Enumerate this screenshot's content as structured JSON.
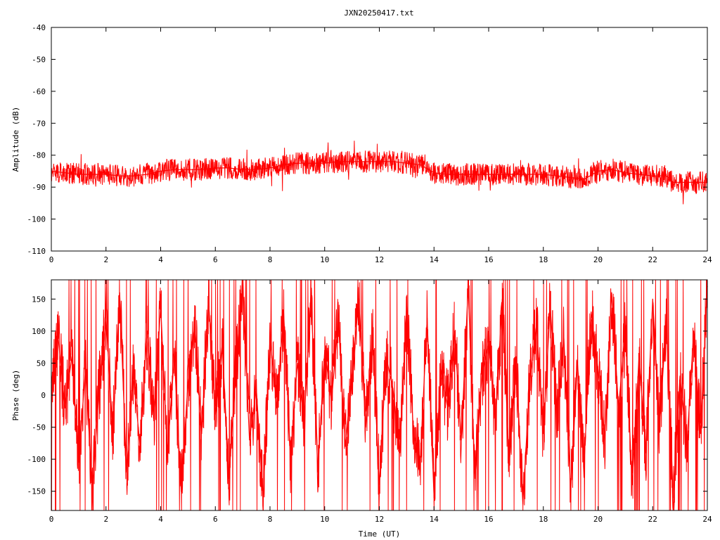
{
  "title": "JXN20250417.txt",
  "colors": {
    "series": "#ff0000",
    "axes": "#000000",
    "background": "#ffffff"
  },
  "chart_data": [
    {
      "type": "line",
      "title": "JXN20250417.txt",
      "xlabel": "",
      "ylabel": "Amplitude (dB)",
      "xlim": [
        0,
        24
      ],
      "ylim": [
        -110,
        -40
      ],
      "grid": false,
      "x_ticks": [
        0,
        2,
        4,
        6,
        8,
        10,
        12,
        14,
        16,
        18,
        20,
        22,
        24
      ],
      "y_ticks": [
        -40,
        -50,
        -60,
        -70,
        -80,
        -90,
        -100,
        -110
      ],
      "x_tick_labels": [
        "0",
        "2",
        "4",
        "6",
        "8",
        "10",
        "12",
        "14",
        "16",
        "18",
        "20",
        "22",
        "24"
      ],
      "y_tick_labels": [
        "-40",
        "-50",
        "-60",
        "-70",
        "-80",
        "-90",
        "-100",
        "-110"
      ],
      "series": [
        {
          "x": [
            0,
            0.5,
            1,
            1.5,
            2,
            2.5,
            3,
            3.5,
            4,
            4.5,
            5,
            5.5,
            6,
            6.5,
            7,
            7.5,
            8,
            8.5,
            9,
            9.5,
            10,
            10.5,
            11,
            11.5,
            12,
            12.5,
            13,
            13.5,
            14,
            14.5,
            15,
            15.5,
            16,
            16.5,
            17,
            17.5,
            18,
            18.5,
            19,
            19.5,
            20,
            20.5,
            21,
            21.5,
            22,
            22.5,
            22.75,
            23,
            23.5,
            24
          ],
          "y": [
            -85,
            -85.5,
            -86,
            -86,
            -86,
            -86.5,
            -86.5,
            -86,
            -85,
            -84.5,
            -84.5,
            -84.5,
            -84,
            -84,
            -84.5,
            -84.5,
            -84,
            -83,
            -82.5,
            -82.5,
            -82.5,
            -82,
            -82,
            -82,
            -82,
            -82,
            -82.5,
            -83,
            -85.5,
            -86,
            -86,
            -86,
            -86,
            -86,
            -86,
            -86,
            -86,
            -86.5,
            -87,
            -87.5,
            -85,
            -84.5,
            -85.5,
            -86,
            -86.5,
            -86.5,
            -88.5,
            -88.5,
            -88.5,
            -88.5
          ]
        }
      ]
    },
    {
      "type": "line",
      "title": "",
      "xlabel": "Time (UT)",
      "ylabel": "Phase (deg)",
      "xlim": [
        0,
        24
      ],
      "ylim": [
        -180,
        180
      ],
      "grid": false,
      "x_ticks": [
        0,
        2,
        4,
        6,
        8,
        10,
        12,
        14,
        16,
        18,
        20,
        22,
        24
      ],
      "y_ticks": [
        150,
        100,
        50,
        0,
        -50,
        -100,
        -150
      ],
      "x_tick_labels": [
        "0",
        "2",
        "4",
        "6",
        "8",
        "10",
        "12",
        "14",
        "16",
        "18",
        "20",
        "22",
        "24"
      ],
      "y_tick_labels": [
        "150",
        "100",
        "50",
        "0",
        "-50",
        "-100",
        "-150"
      ],
      "series": [
        {
          "x": [
            0,
            0.25,
            0.5,
            0.75,
            1,
            1.25,
            1.5,
            1.75,
            2,
            2.25,
            2.5,
            2.75,
            3,
            3.25,
            3.5,
            3.75,
            4,
            4.25,
            4.5,
            4.75,
            5,
            5.25,
            5.5,
            5.75,
            6,
            6.25,
            6.5,
            6.75,
            7,
            7.25,
            7.5,
            7.75,
            8,
            8.25,
            8.5,
            8.75,
            9,
            9.25,
            9.5,
            9.75,
            10,
            10.25,
            10.5,
            10.75,
            11,
            11.25,
            11.5,
            11.75,
            12,
            12.25,
            12.5,
            12.75,
            13,
            13.25,
            13.5,
            13.75,
            14,
            14.25,
            14.5,
            14.75,
            15,
            15.25,
            15.5,
            15.75,
            16,
            16.25,
            16.5,
            16.75,
            17,
            17.25,
            17.5,
            17.75,
            18,
            18.25,
            18.5,
            18.75,
            19,
            19.25,
            19.5,
            19.75,
            20,
            20.25,
            20.5,
            20.75,
            21,
            21.25,
            21.5,
            21.75,
            22,
            22.25,
            22.5,
            22.75,
            23,
            23.25,
            23.5,
            23.75,
            24
          ],
          "y": [
            20,
            90,
            -20,
            60,
            -100,
            40,
            -150,
            10,
            120,
            -60,
            160,
            -120,
            30,
            -80,
            100,
            -40,
            140,
            -90,
            60,
            -150,
            20,
            110,
            -60,
            150,
            -30,
            80,
            -130,
            40,
            170,
            -70,
            10,
            -160,
            90,
            -20,
            130,
            -100,
            50,
            -40,
            160,
            -120,
            70,
            -10,
            120,
            -80,
            30,
            150,
            -50,
            90,
            -140,
            60,
            10,
            -90,
            140,
            -60,
            -100,
            120,
            -160,
            40,
            -20,
            100,
            -70,
            170,
            -130,
            30,
            80,
            -40,
            150,
            -110,
            60,
            -170,
            20,
            110,
            -60,
            140,
            -30,
            90,
            -150,
            50,
            -100,
            130,
            40,
            -70,
            160,
            -20,
            100,
            -140,
            60,
            -90,
            150,
            -50,
            120,
            -160,
            30,
            -80,
            100,
            -60,
            170
          ]
        }
      ]
    }
  ]
}
